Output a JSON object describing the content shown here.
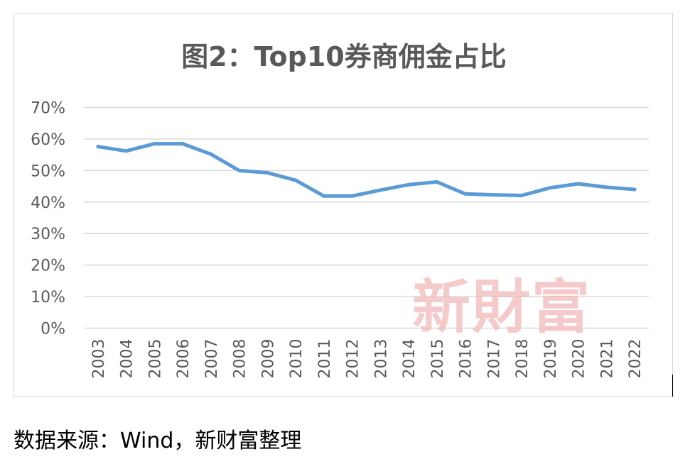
{
  "chart_data": {
    "type": "line",
    "title": "图2：Top10券商佣金占比",
    "xlabel": "",
    "ylabel": "",
    "categories": [
      "2003",
      "2004",
      "2005",
      "2006",
      "2007",
      "2008",
      "2009",
      "2010",
      "2011",
      "2012",
      "2013",
      "2014",
      "2015",
      "2016",
      "2017",
      "2018",
      "2019",
      "2020",
      "2021",
      "2022"
    ],
    "series": [
      {
        "values": [
          57.6,
          56.2,
          58.5,
          58.5,
          55.2,
          50.0,
          49.3,
          46.9,
          41.9,
          41.9,
          43.8,
          45.5,
          46.4,
          42.6,
          42.3,
          42.1,
          44.5,
          45.8,
          44.7,
          44.0
        ]
      }
    ],
    "yticks": [
      "0%",
      "10%",
      "20%",
      "30%",
      "40%",
      "50%",
      "60%",
      "70%"
    ],
    "ylim": [
      0,
      70
    ],
    "grid": true,
    "legend": "none",
    "line_color": "#5b9bd5",
    "grid_color": "#d9d9d9"
  },
  "watermark": "新財富",
  "source_note": "数据来源：Wind，新财富整理"
}
